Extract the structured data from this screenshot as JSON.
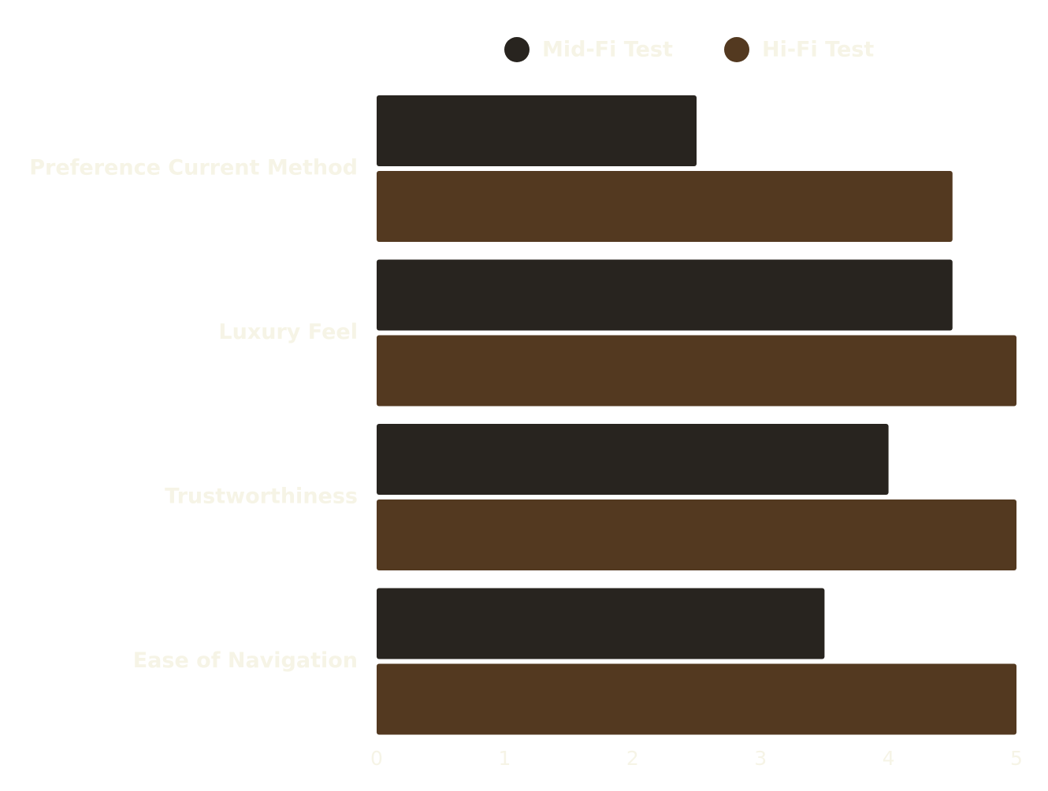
{
  "chart_data": {
    "type": "bar",
    "orientation": "horizontal",
    "categories": [
      "Preference Current Method",
      "Luxury Feel",
      "Trustworthiness",
      "Ease of Navigation"
    ],
    "series": [
      {
        "name": "Mid-Fi Test",
        "color": "#28241f",
        "values": [
          2.5,
          4.5,
          4,
          3.5
        ]
      },
      {
        "name": "Hi-Fi Test",
        "color": "#533920",
        "values": [
          4.5,
          5,
          5,
          5
        ]
      }
    ],
    "xlim": [
      0,
      5
    ],
    "xticks": [
      0,
      1,
      2,
      3,
      4,
      5
    ],
    "grid": false
  }
}
